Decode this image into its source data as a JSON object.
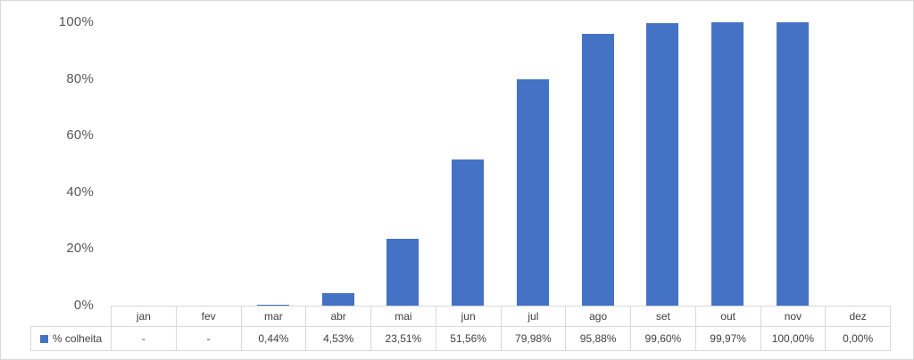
{
  "chart_data": {
    "type": "bar",
    "title": "",
    "categories": [
      "jan",
      "fev",
      "mar",
      "abr",
      "mai",
      "jun",
      "jul",
      "ago",
      "set",
      "out",
      "nov",
      "dez"
    ],
    "series": [
      {
        "name": "% colheita",
        "values": [
          null,
          null,
          0.44,
          4.53,
          23.51,
          51.56,
          79.98,
          95.88,
          99.6,
          99.97,
          100.0,
          0.0
        ],
        "value_labels": [
          "-",
          "-",
          "0,44%",
          "4,53%",
          "23,51%",
          "51,56%",
          "79,98%",
          "95,88%",
          "99,60%",
          "99,97%",
          "100,00%",
          "0,00%"
        ]
      }
    ],
    "xlabel": "",
    "ylabel": "",
    "y_axis": {
      "range": [
        0,
        100
      ],
      "ticks": [
        0,
        20,
        40,
        60,
        80,
        100
      ],
      "tick_labels": [
        "0%",
        "20%",
        "40%",
        "60%",
        "80%",
        "100%"
      ]
    },
    "grid": false,
    "legend_position": "data-table-left",
    "data_table_shown": true
  },
  "legend": {
    "label": "% colheita"
  },
  "colors": {
    "bar": "#4472C4",
    "legend_swatch": "#4472C4",
    "table_border": "#D9D9D9",
    "frame_border": "#D9D9D9",
    "text": "#404040",
    "axis_text": "#595959",
    "background": "#FFFFFF"
  }
}
